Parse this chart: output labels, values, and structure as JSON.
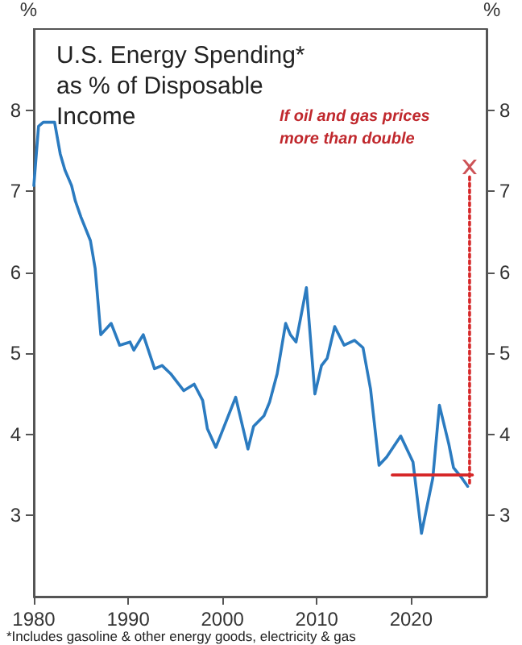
{
  "chart_data": {
    "type": "line",
    "title": "U.S. Energy Spending* as % of Disposable Income",
    "ylabel": "%",
    "y2label": "%",
    "xlim": [
      1980,
      2028
    ],
    "xticks": [
      1980,
      1990,
      2000,
      2010,
      2020
    ],
    "ylim": [
      2,
      9
    ],
    "yticks": [
      3,
      4,
      5,
      6,
      7,
      8
    ],
    "y2lim": [
      2,
      9
    ],
    "y2ticks": [
      3,
      4,
      5,
      6,
      7,
      8
    ],
    "grid": false,
    "annotations": [
      {
        "text": "If oil and gas prices more than double",
        "x": 2026.2,
        "y": 7.3
      },
      "*Includes gasoline & other energy goods, electricity & gas"
    ],
    "series": [
      {
        "color": "#2b7bc0",
        "x": [
          1980,
          1980.5,
          1981,
          1982.2,
          1982.8,
          1983.3,
          1984,
          1984.4,
          1985,
          1986,
          1986.5,
          1987.1,
          1988.2,
          1989.1,
          1990.2,
          1990.6,
          1991.6,
          1992.8,
          1993.6,
          1994.5,
          1995.9,
          1997,
          1997.9,
          1998.4,
          1999.3,
          2001.4,
          2002.7,
          2003.3,
          2004.4,
          2005,
          2005.8,
          2006.7,
          2007.2,
          2007.8,
          2008.9,
          2009.8,
          2010.5,
          2011.1,
          2011.9,
          2012.9,
          2014,
          2014.9,
          2015.7,
          2016.6,
          2017.4,
          2018.9,
          2020.2,
          2021.1,
          2022.3,
          2023,
          2024,
          2024.5,
          2025.4,
          2026
        ],
        "values": [
          7.07,
          7.8,
          7.85,
          7.85,
          7.46,
          7.26,
          7.07,
          6.88,
          6.68,
          6.39,
          6.05,
          5.23,
          5.37,
          5.1,
          5.14,
          5.04,
          5.23,
          4.81,
          4.85,
          4.75,
          4.54,
          4.62,
          4.42,
          4.07,
          3.84,
          4.46,
          3.82,
          4.1,
          4.23,
          4.4,
          4.75,
          5.37,
          5.23,
          5.14,
          5.81,
          4.5,
          4.85,
          4.94,
          5.33,
          5.1,
          5.16,
          5.07,
          4.56,
          3.62,
          3.72,
          3.98,
          3.66,
          2.78,
          3.46,
          4.36,
          3.88,
          3.59,
          3.46,
          3.36
        ]
      },
      {
        "type": "line",
        "color": "#d62728",
        "x": [
          2018,
          2026.5
        ],
        "values": [
          3.5,
          3.5
        ]
      },
      {
        "type": "line",
        "color": "#d62728",
        "line_style": "dotted",
        "x": [
          2026.2,
          2026.2
        ],
        "values": [
          3.4,
          7.2
        ]
      },
      {
        "type": "scatter",
        "color": "#c0282d",
        "marker": "cross",
        "x": [
          2026.2
        ],
        "values": [
          7.3
        ]
      }
    ]
  }
}
